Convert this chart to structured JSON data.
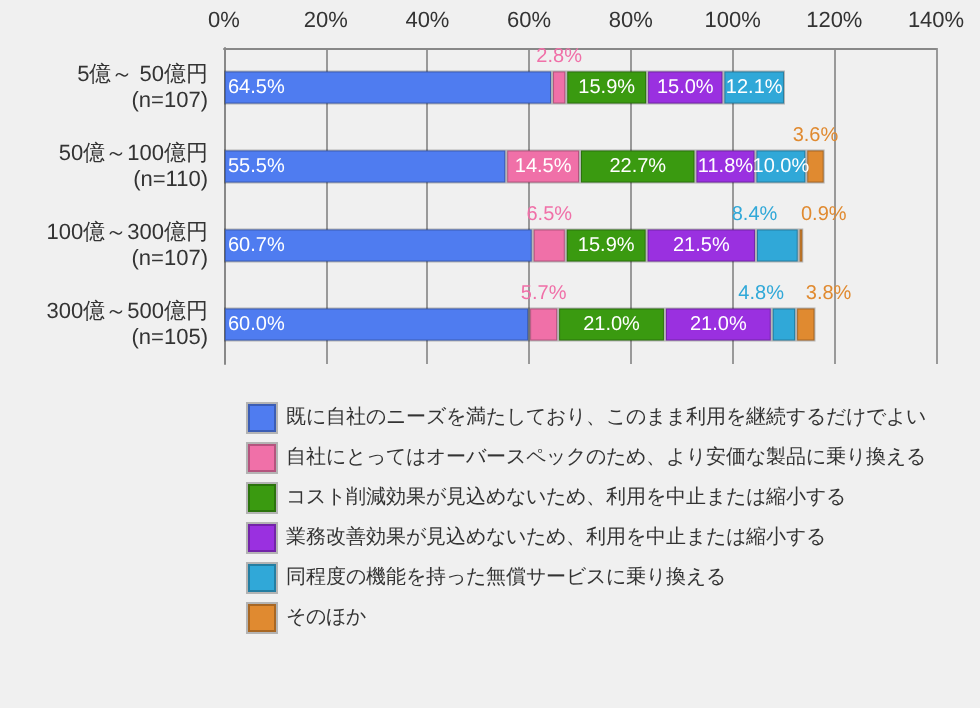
{
  "chart_data": {
    "type": "bar",
    "orientation": "horizontal",
    "stacked": true,
    "categories": [
      "5億～ 50億円\n(n=107)",
      "50億～100億円\n(n=110)",
      "100億～300億円\n(n=107)",
      "300億～500億円\n(n=105)"
    ],
    "series": [
      {
        "name": "既に自社のニーズを満たしており、このまま利用を継続するだけでよい",
        "color": "#4f7cf0",
        "values": [
          64.5,
          55.5,
          60.7,
          60.0
        ],
        "value_labels": [
          "64.5%",
          "55.5%",
          "60.7%",
          "60.0%"
        ]
      },
      {
        "name": "自社にとってはオーバースペックのため、より安価な製品に乗り換える",
        "color": "#f070a8",
        "values": [
          2.8,
          14.5,
          6.5,
          5.7
        ],
        "value_labels": [
          "2.8%",
          "14.5%",
          "6.5%",
          "5.7%"
        ]
      },
      {
        "name": "コスト削減効果が見込めないため、利用を中止または縮小する",
        "color": "#3a9a10",
        "values": [
          15.9,
          22.7,
          15.9,
          21.0
        ],
        "value_labels": [
          "15.9%",
          "22.7%",
          "15.9%",
          "21.0%"
        ]
      },
      {
        "name": "業務改善効果が見込めないため、利用を中止または縮小する",
        "color": "#9a30e0",
        "values": [
          15.0,
          11.8,
          21.5,
          21.0
        ],
        "value_labels": [
          "15.0%",
          "11.8%",
          "21.5%",
          "21.0%"
        ]
      },
      {
        "name": "同程度の機能を持った無償サービスに乗り換える",
        "color": "#30a8d8",
        "values": [
          12.1,
          10.0,
          8.4,
          4.8
        ],
        "value_labels": [
          "12.1%",
          "10.0%",
          "8.4%",
          "4.8%"
        ]
      },
      {
        "name": "そのほか",
        "color": "#e08a30",
        "values": [
          null,
          3.6,
          0.9,
          3.8
        ],
        "value_labels": [
          null,
          "3.6%",
          "0.9%",
          "3.8%"
        ]
      }
    ],
    "xlim": [
      0,
      140
    ],
    "xticks": [
      {
        "value": 0,
        "label": "0%"
      },
      {
        "value": 20,
        "label": "20%"
      },
      {
        "value": 40,
        "label": "40%"
      },
      {
        "value": 60,
        "label": "60%"
      },
      {
        "value": 80,
        "label": "80%"
      },
      {
        "value": 100,
        "label": "100%"
      },
      {
        "value": 120,
        "label": "120%"
      },
      {
        "value": 140,
        "label": "140%"
      }
    ],
    "grid": "x",
    "legend": "bottom"
  }
}
